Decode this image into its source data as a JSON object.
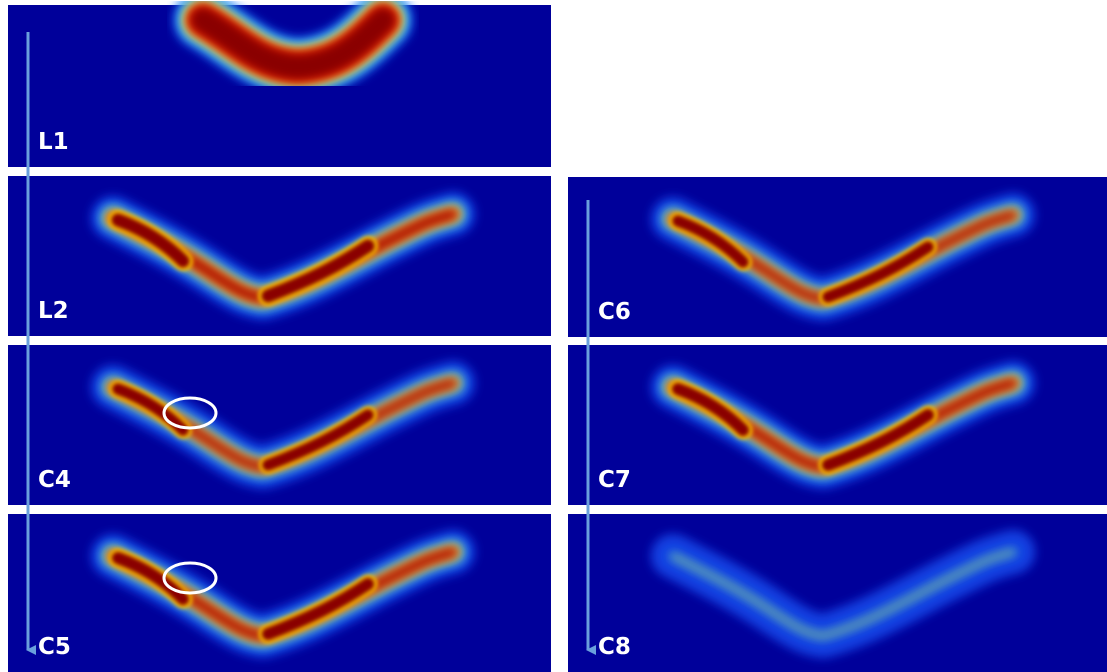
{
  "panels": [
    {
      "label": "L1"
    },
    {
      "label": "L2"
    },
    {
      "label": "C4"
    },
    {
      "label": "C5"
    },
    {
      "label": "C6"
    },
    {
      "label": "C7"
    },
    {
      "label": "C8"
    }
  ]
}
